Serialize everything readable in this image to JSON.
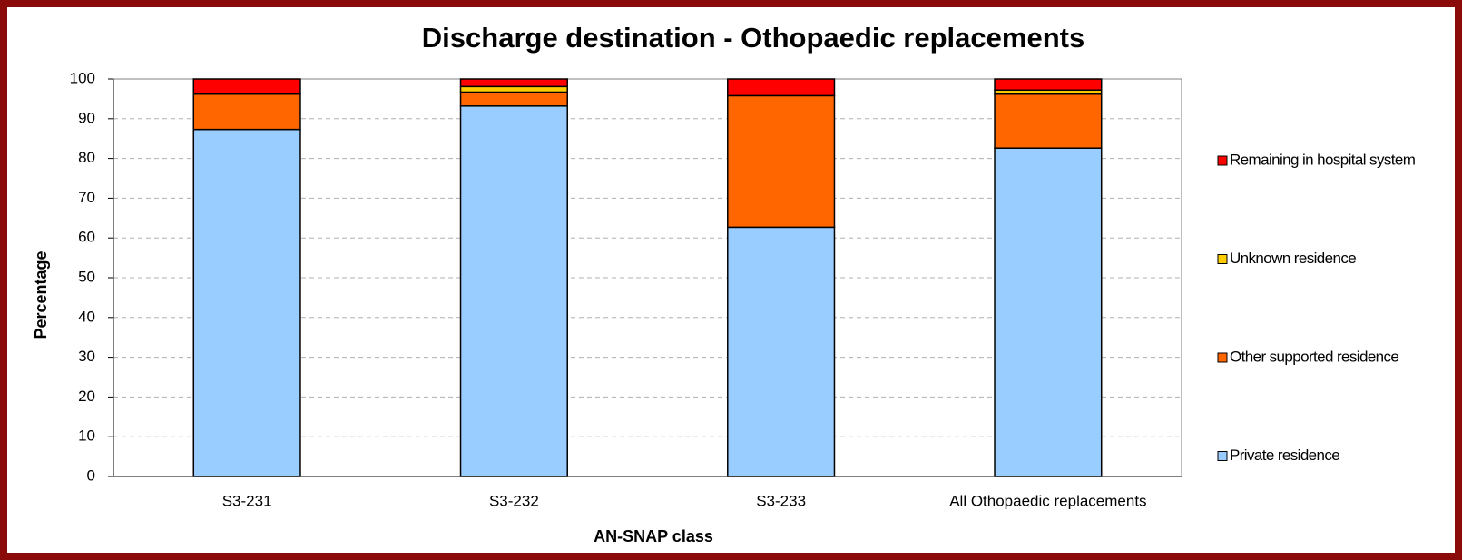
{
  "chart_data": {
    "type": "stacked_bar",
    "title": "Discharge destination - Othopaedic replacements",
    "x_label": "AN-SNAP class",
    "y_label": "Percentage",
    "categories": [
      "S3-231",
      "S3-232",
      "S3-233",
      "All Othopaedic replacements"
    ],
    "series": [
      {
        "name": "Private residence",
        "color": "#99ccff",
        "values": [
          87.3,
          93.2,
          62.7,
          82.6
        ]
      },
      {
        "name": "Other supported residence",
        "color": "#ff6600",
        "values": [
          8.9,
          3.5,
          33.1,
          13.6
        ]
      },
      {
        "name": "Unknown residence",
        "color": "#ffcc00",
        "values": [
          0,
          1.4,
          0,
          1.0
        ]
      },
      {
        "name": "Remaining in hospital system",
        "color": "#ff0000",
        "values": [
          3.8,
          1.9,
          4.2,
          2.8
        ]
      }
    ],
    "ylim": [
      0,
      100
    ],
    "yticks": [
      0,
      10,
      20,
      30,
      40,
      50,
      60,
      70,
      80,
      90,
      100
    ],
    "grid": true,
    "legend": "right"
  }
}
